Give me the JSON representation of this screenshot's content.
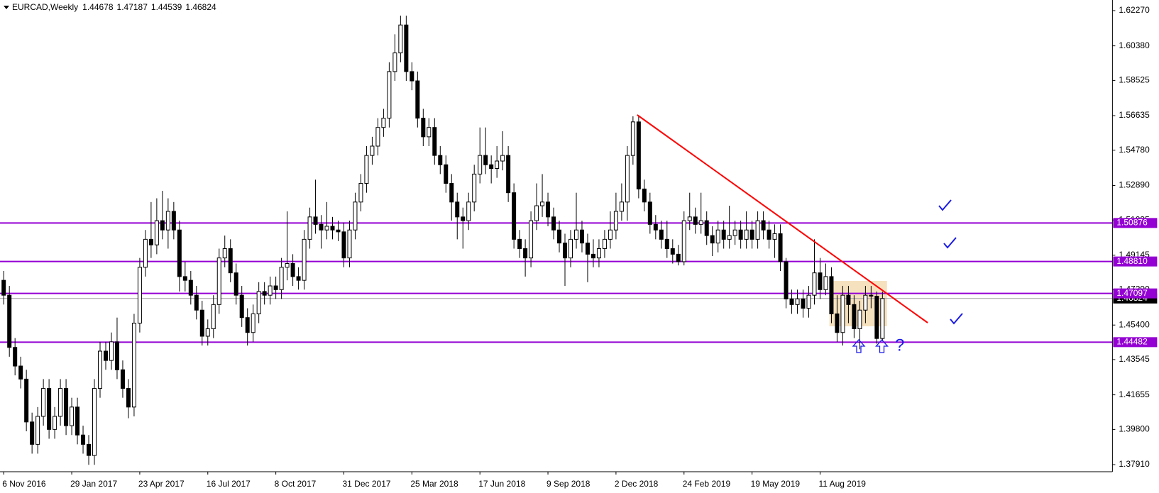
{
  "chart_data": {
    "type": "candlestick",
    "title": "EURCAD,Weekly",
    "categories": [
      "6 Nov 2016",
      null,
      null,
      null,
      null,
      null,
      null,
      null,
      null,
      null,
      null,
      null,
      "29 Jan 2017",
      null,
      null,
      null,
      null,
      null,
      null,
      null,
      null,
      null,
      null,
      null,
      "23 Apr 2017",
      null,
      null,
      null,
      null,
      null,
      null,
      null,
      null,
      null,
      null,
      null,
      "16 Jul 2017",
      null,
      null,
      null,
      null,
      null,
      null,
      null,
      null,
      null,
      null,
      null,
      "8 Oct 2017",
      null,
      null,
      null,
      null,
      null,
      null,
      null,
      null,
      null,
      null,
      null,
      "31 Dec 2017",
      null,
      null,
      null,
      null,
      null,
      null,
      null,
      null,
      null,
      null,
      null,
      "25 Mar 2018",
      null,
      null,
      null,
      null,
      null,
      null,
      null,
      null,
      null,
      null,
      null,
      "17 Jun 2018",
      null,
      null,
      null,
      null,
      null,
      null,
      null,
      null,
      null,
      null,
      null,
      "9 Sep 2018",
      null,
      null,
      null,
      null,
      null,
      null,
      null,
      null,
      null,
      null,
      null,
      "2 Dec 2018",
      null,
      null,
      null,
      null,
      null,
      null,
      null,
      null,
      null,
      null,
      null,
      "24 Feb 2019",
      null,
      null,
      null,
      null,
      null,
      null,
      null,
      null,
      null,
      null,
      null,
      "19 May 2019",
      null,
      null,
      null,
      null,
      null,
      null,
      null,
      null,
      null,
      null,
      null,
      "11 Aug 2019",
      null,
      null,
      null,
      null,
      null,
      null,
      null,
      null,
      null,
      null,
      null
    ],
    "open": [
      1.478,
      1.47,
      1.442,
      1.432,
      1.425,
      1.402,
      1.39,
      1.405,
      1.42,
      1.398,
      1.405,
      1.42,
      1.4,
      1.41,
      1.395,
      1.39,
      1.384,
      1.42,
      1.44,
      1.435,
      1.445,
      1.43,
      1.42,
      1.41,
      1.455,
      1.485,
      1.5,
      1.497,
      1.51,
      1.505,
      1.515,
      1.505,
      1.48,
      1.478,
      1.47,
      1.462,
      1.448,
      1.452,
      1.465,
      1.49,
      1.495,
      1.482,
      1.47,
      1.458,
      1.45,
      1.46,
      1.472,
      1.47,
      1.475,
      1.473,
      1.485,
      1.487,
      1.48,
      1.478,
      1.5,
      1.512,
      1.508,
      1.505,
      1.507,
      1.505,
      1.504,
      1.49,
      1.505,
      1.52,
      1.53,
      1.545,
      1.55,
      1.56,
      1.565,
      1.59,
      1.6,
      1.615,
      1.59,
      1.585,
      1.565,
      1.555,
      1.56,
      1.545,
      1.54,
      1.53,
      1.52,
      1.512,
      1.51,
      1.52,
      1.535,
      1.545,
      1.54,
      1.538,
      1.542,
      1.545,
      1.525,
      1.5,
      1.495,
      1.49,
      1.51,
      1.518,
      1.52,
      1.512,
      1.505,
      1.498,
      1.49,
      1.5,
      1.505,
      1.498,
      1.492,
      1.49,
      1.495,
      1.5,
      1.505,
      1.515,
      1.52,
      1.545,
      1.563,
      1.527,
      1.52,
      1.508,
      1.505,
      1.5,
      1.495,
      1.492,
      1.488,
      1.51,
      1.512,
      1.508,
      1.51,
      1.502,
      1.498,
      1.505,
      1.5,
      1.502,
      1.505,
      1.5,
      1.505,
      1.5,
      1.51,
      1.505,
      1.5,
      1.503,
      1.488,
      1.468,
      1.465,
      1.468,
      1.463,
      1.47,
      1.482,
      1.473,
      1.48,
      1.46,
      1.45,
      1.47,
      1.465,
      1.452,
      1.462,
      1.47,
      1.4695,
      1.44678
    ],
    "high": [
      1.483,
      1.475,
      1.447,
      1.437,
      1.43,
      1.407,
      1.41,
      1.425,
      1.425,
      1.41,
      1.425,
      1.425,
      1.415,
      1.415,
      1.4,
      1.395,
      1.425,
      1.445,
      1.445,
      1.45,
      1.458,
      1.435,
      1.425,
      1.46,
      1.49,
      1.505,
      1.52,
      1.522,
      1.526,
      1.522,
      1.52,
      1.51,
      1.488,
      1.483,
      1.475,
      1.467,
      1.457,
      1.47,
      1.495,
      1.502,
      1.5,
      1.487,
      1.475,
      1.463,
      1.465,
      1.477,
      1.477,
      1.48,
      1.48,
      1.49,
      1.515,
      1.492,
      1.485,
      1.505,
      1.517,
      1.532,
      1.513,
      1.52,
      1.512,
      1.51,
      1.509,
      1.51,
      1.525,
      1.535,
      1.55,
      1.555,
      1.565,
      1.57,
      1.595,
      1.61,
      1.62,
      1.62,
      1.595,
      1.59,
      1.57,
      1.565,
      1.565,
      1.55,
      1.545,
      1.535,
      1.525,
      1.517,
      1.525,
      1.54,
      1.56,
      1.56,
      1.545,
      1.55,
      1.558,
      1.55,
      1.53,
      1.505,
      1.5,
      1.515,
      1.53,
      1.535,
      1.525,
      1.517,
      1.51,
      1.503,
      1.505,
      1.525,
      1.51,
      1.503,
      1.5,
      1.5,
      1.505,
      1.515,
      1.525,
      1.53,
      1.55,
      1.566,
      1.566,
      1.532,
      1.525,
      1.513,
      1.51,
      1.51,
      1.5,
      1.497,
      1.515,
      1.525,
      1.517,
      1.525,
      1.515,
      1.507,
      1.51,
      1.51,
      1.518,
      1.51,
      1.51,
      1.515,
      1.51,
      1.515,
      1.515,
      1.51,
      1.508,
      1.508,
      1.49,
      1.473,
      1.473,
      1.473,
      1.475,
      1.5,
      1.49,
      1.487,
      1.485,
      1.47,
      1.475,
      1.475,
      1.47,
      1.467,
      1.475,
      1.475,
      1.472,
      1.47187
    ],
    "low": [
      1.465,
      1.437,
      1.427,
      1.42,
      1.397,
      1.385,
      1.385,
      1.4,
      1.393,
      1.393,
      1.4,
      1.395,
      1.395,
      1.39,
      1.385,
      1.379,
      1.379,
      1.415,
      1.43,
      1.43,
      1.425,
      1.415,
      1.404,
      1.405,
      1.45,
      1.48,
      1.49,
      1.492,
      1.5,
      1.495,
      1.5,
      1.472,
      1.472,
      1.465,
      1.457,
      1.443,
      1.443,
      1.447,
      1.46,
      1.485,
      1.477,
      1.465,
      1.453,
      1.443,
      1.445,
      1.455,
      1.465,
      1.465,
      1.468,
      1.468,
      1.478,
      1.475,
      1.473,
      1.473,
      1.495,
      1.503,
      1.495,
      1.5,
      1.5,
      1.499,
      1.485,
      1.485,
      1.5,
      1.515,
      1.525,
      1.54,
      1.545,
      1.555,
      1.56,
      1.585,
      1.595,
      1.585,
      1.58,
      1.56,
      1.55,
      1.55,
      1.54,
      1.535,
      1.525,
      1.51,
      1.5,
      1.495,
      1.505,
      1.515,
      1.53,
      1.535,
      1.53,
      1.533,
      1.537,
      1.52,
      1.495,
      1.49,
      1.48,
      1.485,
      1.505,
      1.512,
      1.507,
      1.5,
      1.493,
      1.475,
      1.485,
      1.495,
      1.493,
      1.477,
      1.485,
      1.485,
      1.49,
      1.495,
      1.5,
      1.51,
      1.51,
      1.54,
      1.522,
      1.515,
      1.503,
      1.5,
      1.495,
      1.49,
      1.487,
      1.486,
      1.486,
      1.505,
      1.503,
      1.503,
      1.497,
      1.491,
      1.493,
      1.495,
      1.495,
      1.497,
      1.495,
      1.495,
      1.495,
      1.495,
      1.5,
      1.495,
      1.49,
      1.483,
      1.463,
      1.46,
      1.46,
      1.458,
      1.458,
      1.465,
      1.468,
      1.47,
      1.455,
      1.445,
      1.443,
      1.455,
      1.447,
      1.441,
      1.455,
      1.463,
      1.444,
      1.44539
    ],
    "close": [
      1.47,
      1.442,
      1.432,
      1.425,
      1.402,
      1.39,
      1.405,
      1.42,
      1.398,
      1.405,
      1.42,
      1.4,
      1.41,
      1.395,
      1.39,
      1.384,
      1.42,
      1.44,
      1.435,
      1.445,
      1.43,
      1.42,
      1.41,
      1.455,
      1.485,
      1.5,
      1.497,
      1.51,
      1.505,
      1.515,
      1.505,
      1.48,
      1.478,
      1.47,
      1.462,
      1.448,
      1.452,
      1.465,
      1.49,
      1.495,
      1.482,
      1.47,
      1.458,
      1.45,
      1.46,
      1.472,
      1.47,
      1.475,
      1.473,
      1.485,
      1.487,
      1.48,
      1.478,
      1.5,
      1.512,
      1.508,
      1.505,
      1.507,
      1.505,
      1.504,
      1.49,
      1.505,
      1.52,
      1.53,
      1.545,
      1.55,
      1.56,
      1.565,
      1.59,
      1.6,
      1.615,
      1.59,
      1.585,
      1.565,
      1.555,
      1.56,
      1.545,
      1.54,
      1.53,
      1.52,
      1.512,
      1.51,
      1.52,
      1.535,
      1.545,
      1.54,
      1.538,
      1.542,
      1.545,
      1.525,
      1.5,
      1.495,
      1.49,
      1.51,
      1.518,
      1.52,
      1.512,
      1.505,
      1.498,
      1.49,
      1.5,
      1.505,
      1.498,
      1.492,
      1.49,
      1.495,
      1.5,
      1.505,
      1.515,
      1.52,
      1.545,
      1.563,
      1.527,
      1.52,
      1.508,
      1.505,
      1.5,
      1.495,
      1.492,
      1.488,
      1.51,
      1.512,
      1.508,
      1.51,
      1.502,
      1.498,
      1.505,
      1.5,
      1.502,
      1.505,
      1.5,
      1.505,
      1.5,
      1.51,
      1.505,
      1.5,
      1.503,
      1.488,
      1.468,
      1.465,
      1.468,
      1.463,
      1.47,
      1.482,
      1.473,
      1.48,
      1.46,
      1.45,
      1.47,
      1.465,
      1.452,
      1.462,
      1.47,
      1.4695,
      1.44678,
      1.46824
    ],
    "up_color": "#ffffff",
    "down_color": "#000000",
    "ylim": [
      1.3753,
      1.6284
    ],
    "yticks": [
      {
        "value": 1.6227,
        "label": "1.62270"
      },
      {
        "value": 1.6038,
        "label": "1.60380"
      },
      1.58525,
      1.56635,
      {
        "value": 1.5478,
        "label": "1.54780"
      },
      {
        "value": 1.5289,
        "label": "1.52890"
      },
      1.51035,
      1.49145,
      {
        "value": 1.4729,
        "label": "1.47290"
      },
      {
        "value": 1.454,
        "label": "1.45400"
      },
      1.43545,
      1.41655,
      {
        "value": 1.398,
        "label": "1.39800"
      },
      {
        "value": 1.3791,
        "label": "1.37910"
      }
    ],
    "levels": [
      1.50876,
      {
        "value": 1.4881,
        "label": "1.48810"
      },
      1.47097,
      1.44482
    ],
    "level_color": "#9400d3",
    "annotation": "?"
  }
}
